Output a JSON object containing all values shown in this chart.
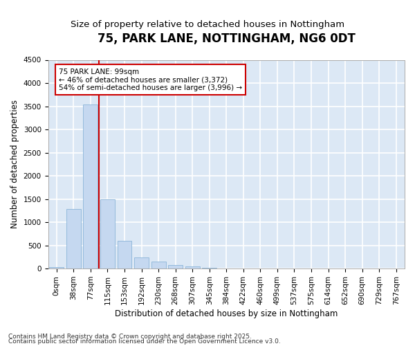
{
  "title": "75, PARK LANE, NOTTINGHAM, NG6 0DT",
  "subtitle": "Size of property relative to detached houses in Nottingham",
  "xlabel": "Distribution of detached houses by size in Nottingham",
  "ylabel": "Number of detached properties",
  "bar_color": "#c5d8f0",
  "bar_edge_color": "#8ab4d8",
  "plot_bg_color": "#dce8f5",
  "fig_bg_color": "#ffffff",
  "grid_color": "#ffffff",
  "red_line_color": "#cc0000",
  "categories": [
    "0sqm",
    "38sqm",
    "77sqm",
    "115sqm",
    "153sqm",
    "192sqm",
    "230sqm",
    "268sqm",
    "307sqm",
    "345sqm",
    "384sqm",
    "422sqm",
    "460sqm",
    "499sqm",
    "537sqm",
    "575sqm",
    "614sqm",
    "652sqm",
    "690sqm",
    "729sqm",
    "767sqm"
  ],
  "values": [
    30,
    1285,
    3540,
    1490,
    595,
    240,
    145,
    80,
    55,
    20,
    10,
    5,
    0,
    0,
    0,
    0,
    2,
    0,
    0,
    0,
    0
  ],
  "ylim": [
    0,
    4500
  ],
  "yticks": [
    0,
    500,
    1000,
    1500,
    2000,
    2500,
    3000,
    3500,
    4000,
    4500
  ],
  "red_line_x": 2.5,
  "annotation_title": "75 PARK LANE: 99sqm",
  "annotation_line1": "← 46% of detached houses are smaller (3,372)",
  "annotation_line2": "54% of semi-detached houses are larger (3,996) →",
  "footer_line1": "Contains HM Land Registry data © Crown copyright and database right 2025.",
  "footer_line2": "Contains public sector information licensed under the Open Government Licence v3.0.",
  "title_fontsize": 12,
  "subtitle_fontsize": 9.5,
  "axis_label_fontsize": 8.5,
  "tick_fontsize": 7.5,
  "annot_fontsize": 7.5,
  "footer_fontsize": 6.5
}
